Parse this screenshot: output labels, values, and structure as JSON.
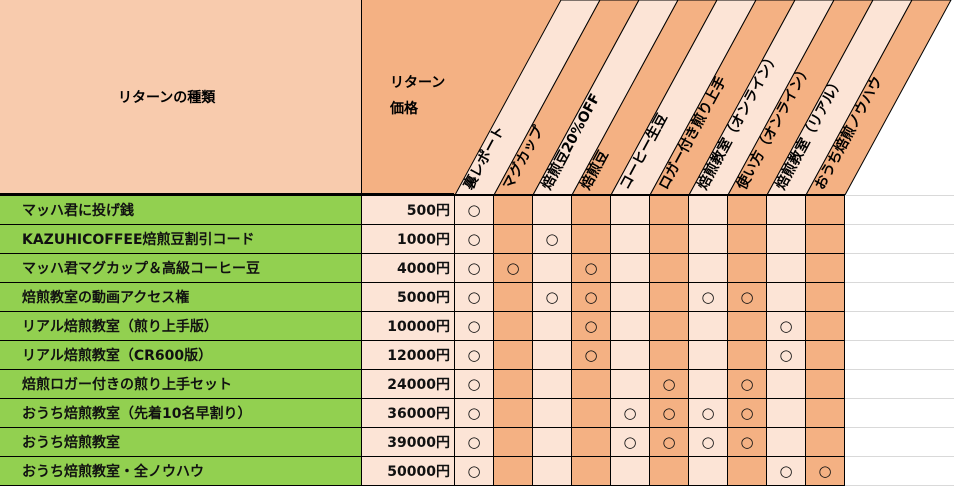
{
  "header": {
    "type_label": "リターンの種類",
    "price_label_line1": "リターン",
    "price_label_line2": "価格",
    "columns": [
      "裏レポート",
      "マグカップ",
      "焙煎豆20%OFF",
      "焙煎豆",
      "コーヒー生豆",
      "ロガー付き煎り上手",
      "焙煎教室（オンライン）",
      "使い方（オンライン）",
      "焙煎教室（リアル）",
      "おうち焙煎ノウハウ"
    ]
  },
  "mark_symbol": "○",
  "colors": {
    "green": "#92d050",
    "peach": "#f8cbad",
    "orange": "#f4b183",
    "light": "#fce4d6"
  },
  "rows": [
    {
      "name": "マッハ君に投げ銭",
      "price": "500円",
      "marks": [
        0
      ]
    },
    {
      "name": "KAZUHICOFFEE焙煎豆割引コード",
      "price": "1000円",
      "marks": [
        0,
        2
      ]
    },
    {
      "name": "マッハ君マグカップ＆高級コーヒー豆",
      "price": "4000円",
      "marks": [
        0,
        1,
        3
      ]
    },
    {
      "name": "焙煎教室の動画アクセス権",
      "price": "5000円",
      "marks": [
        0,
        2,
        3,
        6,
        7
      ]
    },
    {
      "name": "リアル焙煎教室（煎り上手版）",
      "price": "10000円",
      "marks": [
        0,
        3,
        8
      ]
    },
    {
      "name": "リアル焙煎教室（CR600版）",
      "price": "12000円",
      "marks": [
        0,
        3,
        8
      ]
    },
    {
      "name": "焙煎ロガー付きの煎り上手セット",
      "price": "24000円",
      "marks": [
        0,
        5,
        7
      ]
    },
    {
      "name": "おうち焙煎教室（先着10名早割り）",
      "price": "36000円",
      "marks": [
        0,
        4,
        5,
        6,
        7
      ]
    },
    {
      "name": "おうち焙煎教室",
      "price": "39000円",
      "marks": [
        0,
        4,
        5,
        6,
        7
      ]
    },
    {
      "name": "おうち焙煎教室・全ノウハウ",
      "price": "50000円",
      "marks": [
        0,
        8,
        9
      ]
    }
  ]
}
